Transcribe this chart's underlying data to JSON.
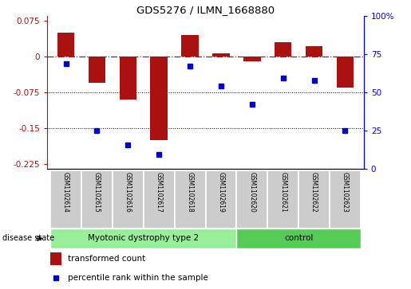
{
  "title": "GDS5276 / ILMN_1668880",
  "samples": [
    "GSM1102614",
    "GSM1102615",
    "GSM1102616",
    "GSM1102617",
    "GSM1102618",
    "GSM1102619",
    "GSM1102620",
    "GSM1102621",
    "GSM1102622",
    "GSM1102623"
  ],
  "bar_values": [
    0.05,
    -0.055,
    -0.09,
    -0.175,
    0.045,
    0.007,
    -0.01,
    0.03,
    0.022,
    -0.065
  ],
  "dot_values": [
    -0.015,
    -0.155,
    -0.185,
    -0.205,
    -0.02,
    -0.062,
    -0.1,
    -0.045,
    -0.05,
    -0.155
  ],
  "bar_color": "#aa1111",
  "dot_color": "#0000cc",
  "ylim": [
    -0.235,
    0.085
  ],
  "yticks_left": [
    0.075,
    0,
    -0.075,
    -0.15,
    -0.225
  ],
  "yticks_right_vals": [
    100,
    75,
    50,
    25,
    0
  ],
  "yticks_right_labels": [
    "100%",
    "75",
    "50",
    "25",
    "0"
  ],
  "group1_label": "Myotonic dystrophy type 2",
  "group1_samples": 6,
  "group2_label": "control",
  "group2_samples": 4,
  "group1_color": "#99ee99",
  "group2_color": "#55cc55",
  "sample_box_color": "#cccccc",
  "sample_box_edge": "#ffffff",
  "disease_state_label": "disease state",
  "legend_bar_label": "transformed count",
  "legend_dot_label": "percentile rank within the sample",
  "bg_color": "#ffffff"
}
